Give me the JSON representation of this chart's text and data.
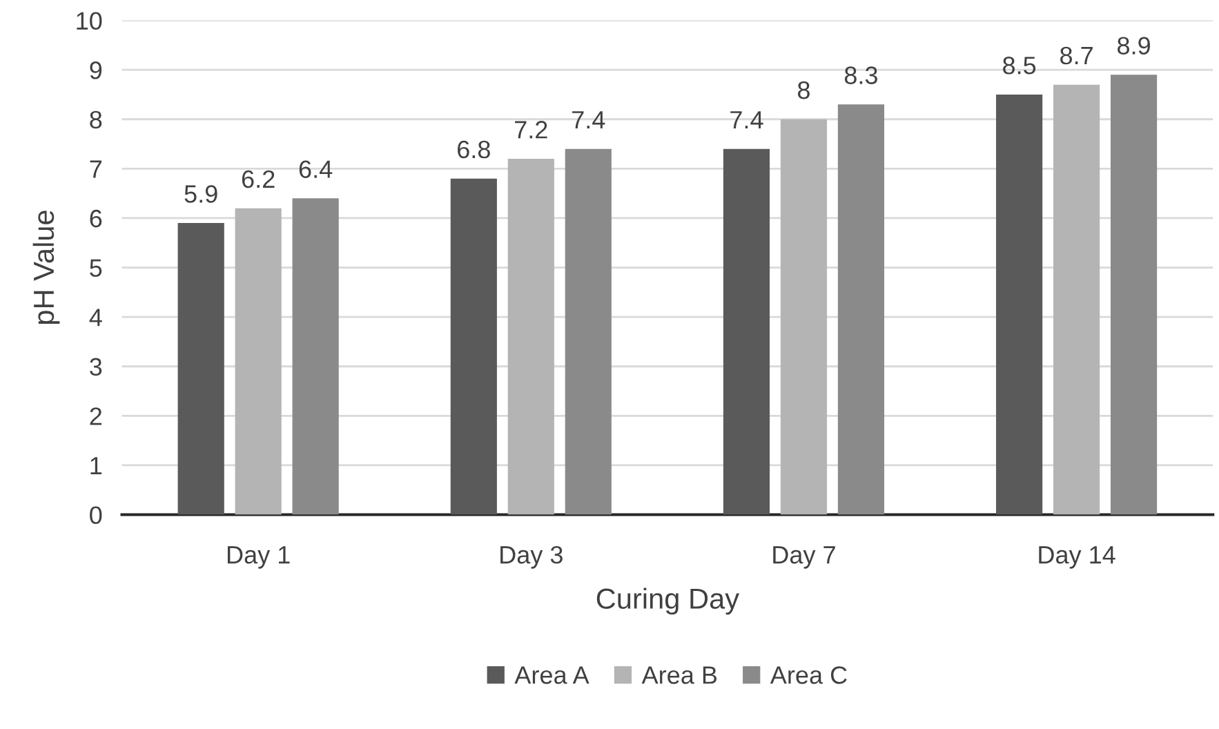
{
  "chart_data": {
    "type": "bar",
    "xlabel": "Curing Day",
    "ylabel": "pH Value",
    "categories": [
      "Day 1",
      "Day 3",
      "Day 7",
      "Day 14"
    ],
    "series": [
      {
        "name": "Area A",
        "color": "#5a5a5a",
        "values": [
          5.9,
          6.8,
          7.4,
          8.5
        ]
      },
      {
        "name": "Area B",
        "color": "#b4b4b4",
        "values": [
          6.2,
          7.2,
          8,
          8.7
        ]
      },
      {
        "name": "Area C",
        "color": "#8a8a8a",
        "values": [
          6.4,
          7.4,
          8.3,
          8.9
        ]
      }
    ],
    "ylim": [
      0,
      10
    ],
    "yticks": [
      0,
      1,
      2,
      3,
      4,
      5,
      6,
      7,
      8,
      9,
      10
    ],
    "grid": "y",
    "legend": "bottom",
    "data_labels": true
  }
}
